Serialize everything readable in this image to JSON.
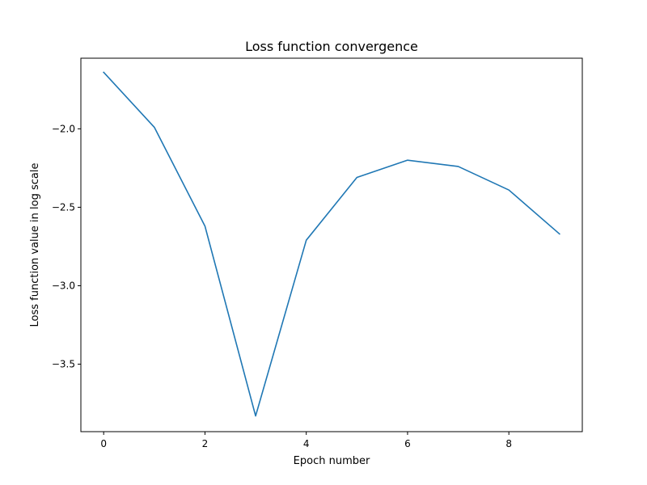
{
  "chart_data": {
    "type": "line",
    "title": "Loss function convergence",
    "xlabel": "Epoch number",
    "ylabel": "Loss function value in log scale",
    "x": [
      0,
      1,
      2,
      3,
      4,
      5,
      6,
      7,
      8,
      9
    ],
    "series": [
      {
        "values": [
          -1.64,
          -1.99,
          -2.62,
          -3.83,
          -2.71,
          -2.31,
          -2.2,
          -2.24,
          -2.39,
          -2.67
        ],
        "color": "#1f77b4"
      }
    ],
    "xlim": [
      -0.45,
      9.45
    ],
    "ylim": [
      -3.93,
      -1.55
    ],
    "xticks": [
      0,
      2,
      4,
      6,
      8
    ],
    "xtick_labels": [
      "0",
      "2",
      "4",
      "6",
      "8"
    ],
    "yticks": [
      -2.0,
      -2.5,
      -3.0,
      -3.5
    ],
    "ytick_labels": [
      "−2.0",
      "−2.5",
      "−3.0",
      "−3.5"
    ],
    "grid": false,
    "legend": false
  }
}
